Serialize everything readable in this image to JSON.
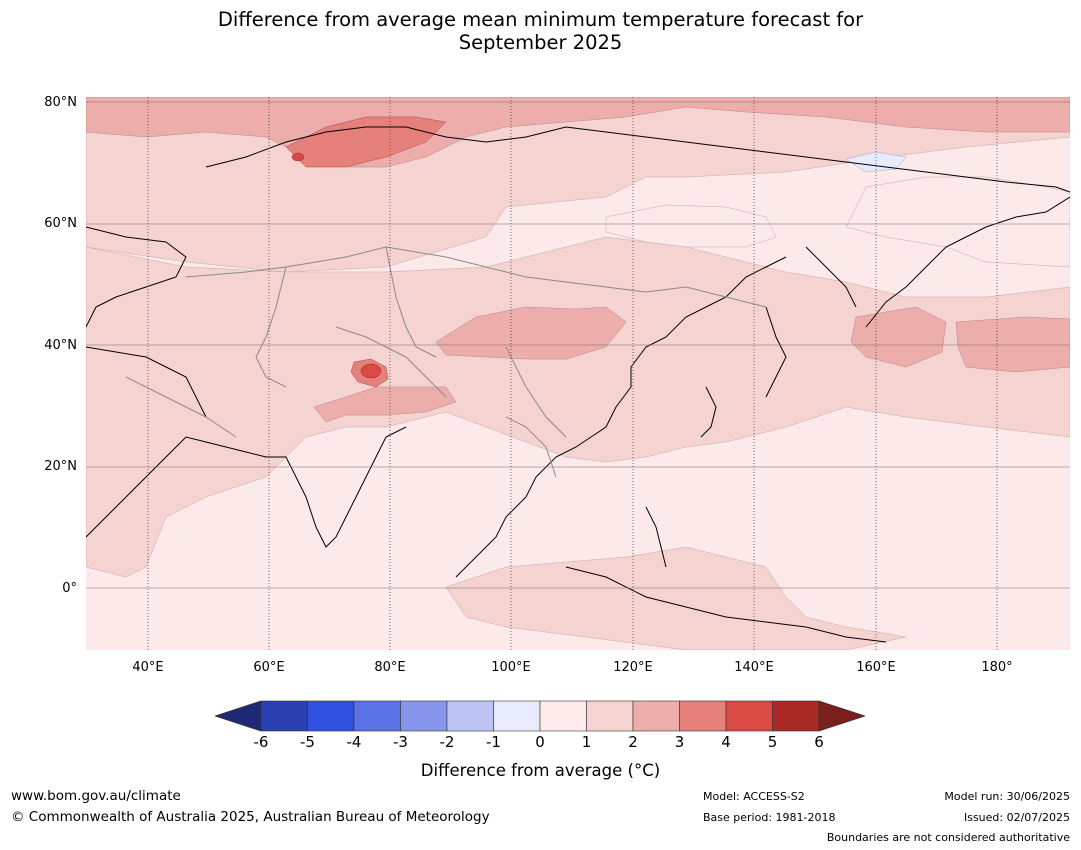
{
  "title": {
    "line1": "Difference from average mean minimum temperature forecast for",
    "line2": "September 2025"
  },
  "map": {
    "lat_labels": [
      "80°N",
      "60°N",
      "40°N",
      "20°N",
      "0°"
    ],
    "lon_labels": [
      "40°E",
      "60°E",
      "80°E",
      "100°E",
      "120°E",
      "140°E",
      "160°E",
      "180°"
    ],
    "ocean_color": "#fbeae9",
    "highlight_region": "37°N 78°E"
  },
  "colorbar": {
    "ticks": [
      "-6",
      "-5",
      "-4",
      "-3",
      "-2",
      "-1",
      "0",
      "1",
      "2",
      "3",
      "4",
      "5",
      "6"
    ],
    "colors": [
      "#1b2a73",
      "#2a3fb0",
      "#3050e0",
      "#5b72e6",
      "#8796ec",
      "#bcc5f4",
      "#e8ebfb",
      "#fcebea",
      "#f5d3d0",
      "#edadaa",
      "#e6807a",
      "#d84a43",
      "#a92a25",
      "#7a1f1c"
    ],
    "label": "Difference from average (°C)"
  },
  "footer": {
    "website": "www.bom.gov.au/climate",
    "copyright": "© Commonwealth of Australia 2025, Australian Bureau of Meteorology",
    "model": "Model: ACCESS-S2",
    "base_period": "Base period: 1981-2018",
    "model_run": "Model run: 30/06/2025",
    "issued": "Issued: 02/07/2025",
    "disclaimer": "Boundaries are not considered authoritative"
  }
}
